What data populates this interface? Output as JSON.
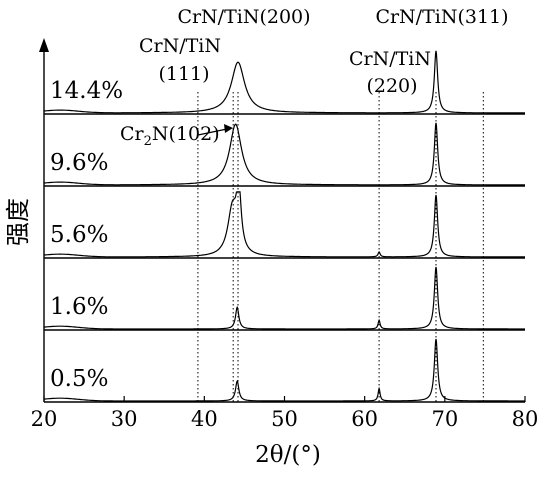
{
  "chart_data": {
    "type": "line",
    "xlabel": "2θ/(°)",
    "ylabel": "强度",
    "xlim": [
      20,
      80
    ],
    "xticks": [
      20,
      30,
      40,
      50,
      60,
      70,
      80
    ],
    "series": [
      {
        "name": "14.4%",
        "peaks": [
          {
            "x": 44.2,
            "h": 0.82,
            "w": 1.0
          },
          {
            "x": 68.9,
            "h": 1.0,
            "w": 0.25
          }
        ]
      },
      {
        "name": "9.6%",
        "peaks": [
          {
            "x": 43.9,
            "h": 0.98,
            "w": 0.9
          },
          {
            "x": 68.9,
            "h": 1.0,
            "w": 0.25
          }
        ]
      },
      {
        "name": "5.6%",
        "peaks": [
          {
            "x": 43.5,
            "h": 0.75,
            "w": 0.7
          },
          {
            "x": 44.3,
            "h": 0.95,
            "w": 0.35
          },
          {
            "x": 61.8,
            "h": 0.08,
            "w": 0.15
          },
          {
            "x": 68.9,
            "h": 1.0,
            "w": 0.25
          }
        ]
      },
      {
        "name": "1.6%",
        "peaks": [
          {
            "x": 44.1,
            "h": 0.35,
            "w": 0.25
          },
          {
            "x": 61.8,
            "h": 0.14,
            "w": 0.15
          },
          {
            "x": 68.9,
            "h": 1.0,
            "w": 0.25
          }
        ]
      },
      {
        "name": "0.5%",
        "peaks": [
          {
            "x": 44.1,
            "h": 0.32,
            "w": 0.25
          },
          {
            "x": 61.8,
            "h": 0.2,
            "w": 0.15
          },
          {
            "x": 68.9,
            "h": 1.0,
            "w": 0.25
          }
        ]
      }
    ],
    "reference_lines": [
      {
        "x": 39.2,
        "label": "CrN/TiN (111)"
      },
      {
        "x": 43.6,
        "label": "Cr2N(102)"
      },
      {
        "x": 44.2,
        "label": "CrN/TiN(200)"
      },
      {
        "x": 61.8,
        "label": "CrN/TiN (220)"
      },
      {
        "x": 68.9,
        "label": "CrN/TiN(311)"
      },
      {
        "x": 74.8,
        "label": ""
      }
    ],
    "annotations": {
      "peak_111_line1": "CrN/TiN",
      "peak_111_line2": "(111)",
      "peak_200": "CrN/TiN(200)",
      "peak_220_line1": "CrN/TiN",
      "peak_220_line2": "(220)",
      "peak_311": "CrN/TiN(311)",
      "cr2n_prefix": "Cr",
      "cr2n_sub": "2",
      "cr2n_suffix": "N(102)"
    }
  }
}
